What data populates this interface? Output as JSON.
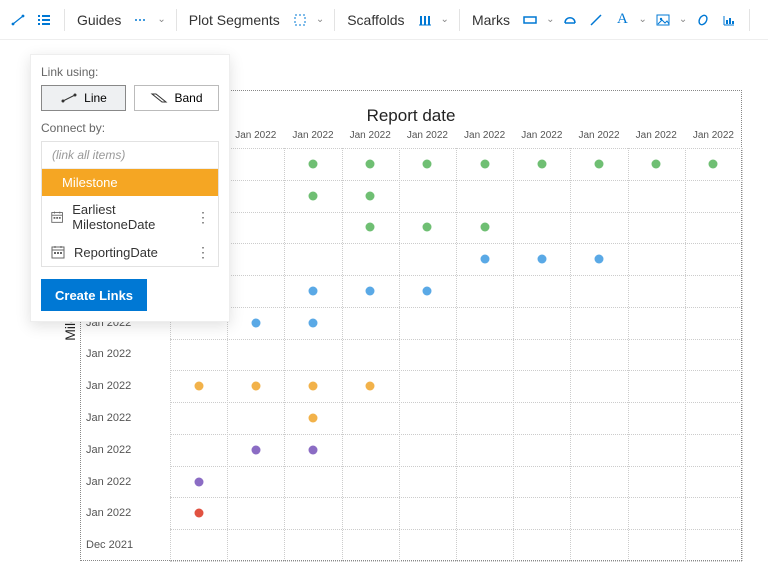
{
  "toolbar": {
    "guides_label": "Guides",
    "plot_segments_label": "Plot Segments",
    "scaffolds_label": "Scaffolds",
    "marks_label": "Marks"
  },
  "popup": {
    "link_using_label": "Link using:",
    "line_label": "Line",
    "band_label": "Band",
    "connect_by_label": "Connect by:",
    "placeholder": "(link all items)",
    "options": [
      {
        "label": "Milestone",
        "kind": "field",
        "selected": true
      },
      {
        "label": "Earliest MilestoneDate",
        "kind": "date",
        "selected": false
      },
      {
        "label": "ReportingDate",
        "kind": "date",
        "selected": false
      }
    ],
    "create_label": "Create Links"
  },
  "chart": {
    "title": "Report date",
    "y_title": "Milestone.d",
    "x_labels": [
      "Jan 2022",
      "Jan 2022",
      "Jan 2022",
      "Jan 2022",
      "Jan 2022",
      "Jan 2022",
      "Jan 2022",
      "Jan 2022",
      "Jan 2022",
      "Jan 2022"
    ],
    "y_labels": [
      "",
      "",
      "",
      "",
      "",
      "Jan 2022",
      "Jan 2022",
      "Jan 2022",
      "Jan 2022",
      "Jan 2022",
      "Jan 2022",
      "Jan 2022",
      "Dec 2021"
    ],
    "n_cols": 10,
    "n_rows": 13,
    "colors": {
      "green": "#6fbf73",
      "blue": "#5aa9e6",
      "orange": "#f2b24a",
      "purple": "#8b6cc4",
      "red": "#e15241",
      "grid": "#cccccc",
      "border": "#888888"
    },
    "points": [
      {
        "col": 2,
        "row": 0,
        "c": "green"
      },
      {
        "col": 3,
        "row": 0,
        "c": "green"
      },
      {
        "col": 4,
        "row": 0,
        "c": "green"
      },
      {
        "col": 5,
        "row": 0,
        "c": "green"
      },
      {
        "col": 6,
        "row": 0,
        "c": "green"
      },
      {
        "col": 7,
        "row": 0,
        "c": "green"
      },
      {
        "col": 8,
        "row": 0,
        "c": "green"
      },
      {
        "col": 9,
        "row": 0,
        "c": "green"
      },
      {
        "col": 2,
        "row": 1,
        "c": "green"
      },
      {
        "col": 3,
        "row": 1,
        "c": "green"
      },
      {
        "col": 3,
        "row": 2,
        "c": "green"
      },
      {
        "col": 4,
        "row": 2,
        "c": "green"
      },
      {
        "col": 5,
        "row": 2,
        "c": "green"
      },
      {
        "col": 5,
        "row": 3,
        "c": "blue"
      },
      {
        "col": 6,
        "row": 3,
        "c": "blue"
      },
      {
        "col": 7,
        "row": 3,
        "c": "blue"
      },
      {
        "col": 2,
        "row": 4,
        "c": "blue"
      },
      {
        "col": 3,
        "row": 4,
        "c": "blue"
      },
      {
        "col": 4,
        "row": 4,
        "c": "blue"
      },
      {
        "col": 1,
        "row": 5,
        "c": "blue"
      },
      {
        "col": 2,
        "row": 5,
        "c": "blue"
      },
      {
        "col": 0,
        "row": 7,
        "c": "orange"
      },
      {
        "col": 1,
        "row": 7,
        "c": "orange"
      },
      {
        "col": 2,
        "row": 7,
        "c": "orange"
      },
      {
        "col": 3,
        "row": 7,
        "c": "orange"
      },
      {
        "col": 2,
        "row": 8,
        "c": "orange"
      },
      {
        "col": 1,
        "row": 9,
        "c": "purple"
      },
      {
        "col": 2,
        "row": 9,
        "c": "purple"
      },
      {
        "col": 0,
        "row": 10,
        "c": "purple"
      },
      {
        "col": 0,
        "row": 11,
        "c": "red"
      }
    ]
  }
}
